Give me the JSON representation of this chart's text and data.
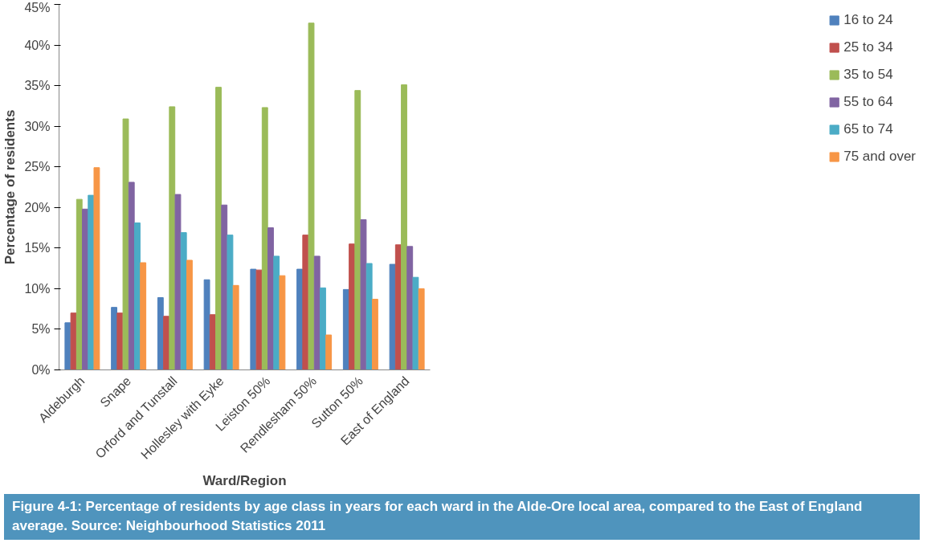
{
  "chart_data": {
    "type": "bar",
    "xlabel": "Ward/Region",
    "ylabel": "Percentage of residents",
    "categories": [
      "Aldeburgh",
      "Snape",
      "Orford and Tunstall",
      "Hollesley with Eyke",
      "Leiston 50%",
      "Rendlesham 50%",
      "Sutton 50%",
      "East of England"
    ],
    "series": [
      {
        "name": "16 to 24",
        "color": "#4f81bd",
        "values": [
          5.8,
          7.7,
          8.9,
          11.1,
          12.4,
          12.4,
          9.9,
          13.0
        ]
      },
      {
        "name": "25 to 34",
        "color": "#c0504d",
        "values": [
          7.0,
          7.0,
          6.6,
          6.8,
          12.3,
          16.6,
          15.5,
          15.4
        ]
      },
      {
        "name": "35 to 54",
        "color": "#9bbb59",
        "values": [
          21.0,
          30.9,
          32.4,
          34.8,
          32.3,
          42.7,
          34.4,
          35.1
        ]
      },
      {
        "name": "55 to 64",
        "color": "#8064a2",
        "values": [
          19.8,
          23.1,
          21.6,
          20.3,
          17.5,
          14.0,
          18.5,
          15.2
        ]
      },
      {
        "name": "65 to 74",
        "color": "#4bacc6",
        "values": [
          21.5,
          18.1,
          16.9,
          16.6,
          14.0,
          10.1,
          13.1,
          11.4
        ]
      },
      {
        "name": "75 and over",
        "color": "#f79646",
        "values": [
          24.9,
          13.2,
          13.5,
          10.4,
          11.6,
          4.3,
          8.7,
          10.0
        ]
      }
    ],
    "ylim": [
      0,
      45
    ],
    "yticks": [
      {
        "value": 0,
        "label": "0%"
      },
      {
        "value": 5,
        "label": "5%"
      },
      {
        "value": 10,
        "label": "10%"
      },
      {
        "value": 15,
        "label": "15%"
      },
      {
        "value": 20,
        "label": "20%"
      },
      {
        "value": 25,
        "label": "25%"
      },
      {
        "value": 30,
        "label": "30%"
      },
      {
        "value": 35,
        "label": "35%"
      },
      {
        "value": 40,
        "label": "40%"
      },
      {
        "value": 45,
        "label": "45%"
      }
    ],
    "legend": "right",
    "annotations": [
      "Figure 4-1:  Percentage of residents by age class in years for each ward in the Alde-Ore local area, compared to the East of England average. Source: Neighbourhood Statistics 2011"
    ]
  }
}
